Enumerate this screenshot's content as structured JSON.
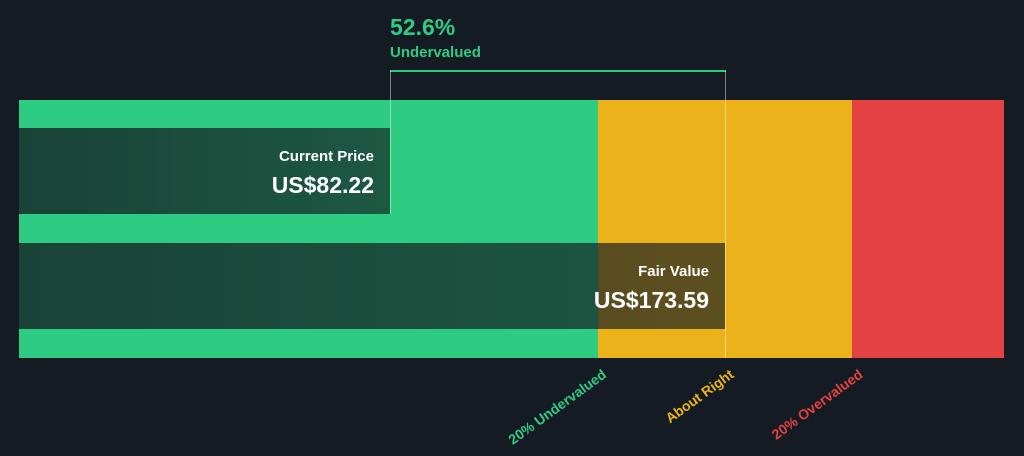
{
  "chart_data": {
    "type": "bar",
    "title": "",
    "zones": [
      {
        "label": "20% Undervalued",
        "color": "#2ecc83"
      },
      {
        "label": "About Right",
        "color": "#ecb21a"
      },
      {
        "label": "20% Overvalued",
        "color": "#e44242"
      }
    ],
    "bars": [
      {
        "name": "Current Price",
        "value": 82.22,
        "display": "US$82.22"
      },
      {
        "name": "Fair Value",
        "value": 173.59,
        "display": "US$173.59"
      }
    ],
    "difference": {
      "percent": "52.6%",
      "label": "Undervalued",
      "color": "#2ecc83"
    }
  }
}
